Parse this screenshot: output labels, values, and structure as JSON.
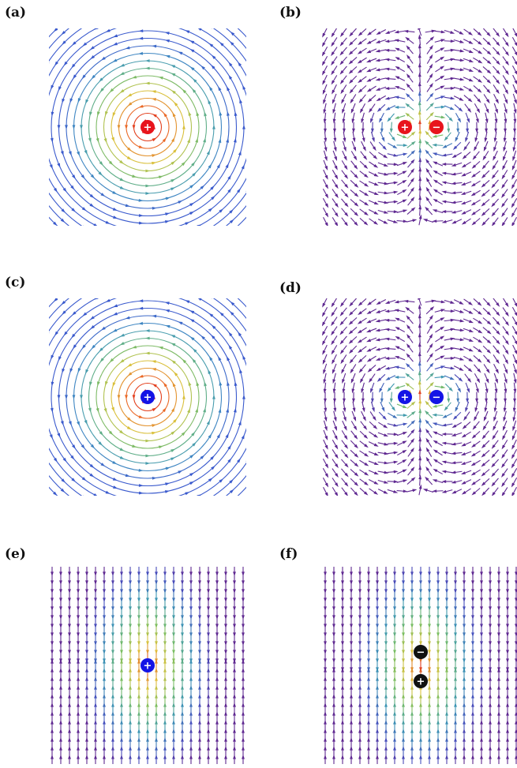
{
  "panels": [
    {
      "label": "(a)",
      "pattern": "vortex",
      "colormap": "blue-green-red",
      "charges": [
        {
          "sign": "+",
          "color": "#e8141c"
        }
      ]
    },
    {
      "label": "(b)",
      "pattern": "dipole-horizontal",
      "colormap": "purple-green-red",
      "charges": [
        {
          "sign": "+",
          "color": "#e8141c"
        },
        {
          "sign": "−",
          "color": "#e8141c"
        }
      ]
    },
    {
      "label": "(c)",
      "pattern": "vortex",
      "colormap": "blue-green-red",
      "charges": [
        {
          "sign": "+",
          "color": "#1414e6"
        }
      ]
    },
    {
      "label": "(d)",
      "pattern": "dipole-horizontal",
      "colormap": "purple-green-red",
      "charges": [
        {
          "sign": "+",
          "color": "#1414e6"
        },
        {
          "sign": "−",
          "color": "#1414e6"
        }
      ]
    },
    {
      "label": "(e)",
      "pattern": "vertical-source",
      "colormap": "purple-green-red",
      "charges": [
        {
          "sign": "+",
          "color": "#1414e6"
        }
      ]
    },
    {
      "label": "(f)",
      "pattern": "vertical-dipole",
      "colormap": "purple-green-red",
      "charges": [
        {
          "sign": "−",
          "color": "#111111"
        },
        {
          "sign": "+",
          "color": "#111111"
        }
      ]
    }
  ]
}
